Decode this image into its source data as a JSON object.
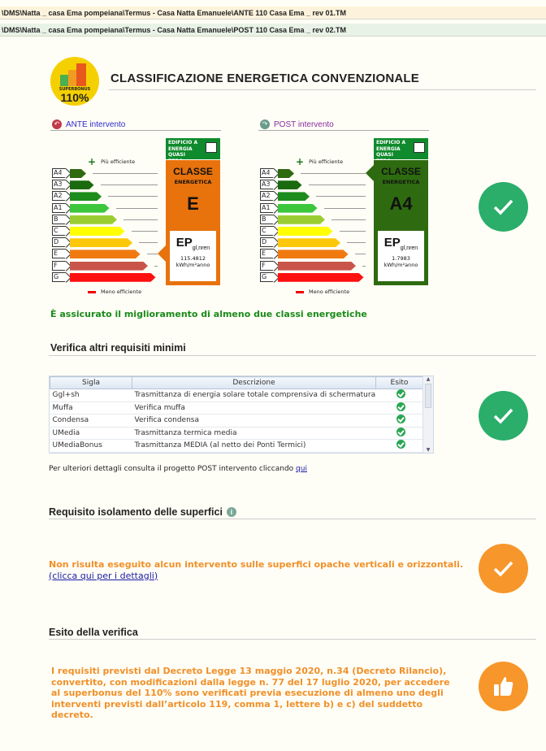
{
  "paths": {
    "ante": "\\DMS\\Natta _ casa Ema pompeiana\\Termus - Casa Natta Emanuele\\ANTE 110 Casa Ema _ rev 01.TM",
    "post": "\\DMS\\Natta _ casa Ema pompeiana\\Termus - Casa Natta Emanuele\\POST 110 Casa Ema _ rev 02.TM"
  },
  "logo": {
    "text": "SUPERBONUS 110%",
    "brand_color": "#f5d000"
  },
  "title": "CLASSIFICAZIONE ENERGETICA CONVENZIONALE",
  "classes": [
    "A4",
    "A3",
    "A2",
    "A1",
    "B",
    "C",
    "D",
    "E",
    "F",
    "G"
  ],
  "class_colors": [
    "#2e6b10",
    "#1a6a10",
    "#1c8c1c",
    "#3cc63c",
    "#9acd32",
    "#ffff00",
    "#fdc80a",
    "#f07a10",
    "#c8544a",
    "#ff1010"
  ],
  "legend": {
    "more": "Più efficiente",
    "less": "Meno efficiente"
  },
  "nzeb_label": "EDIFICIO A ENERGIA QUASI ZERO",
  "class_label": "CLASSE",
  "class_sublabel": "ENERGETICA",
  "ep_label": "EP",
  "ep_sub": "gl,nren",
  "unit": "kWh/m²anno",
  "ante": {
    "header": "ANTE intervento",
    "class": "E",
    "class_index": 7,
    "ep": "115.4812",
    "color": "#e8720c"
  },
  "post": {
    "header": "POST intervento",
    "class": "A4",
    "class_index": 0,
    "ep": "1.7983",
    "color": "#2e6b10"
  },
  "improvement": "È assicurato il miglioramento di almeno due classi energetiche",
  "requisiti": {
    "title": "Verifica altri requisiti minimi",
    "columns": [
      "Sigla",
      "Descrizione",
      "Esito"
    ],
    "rows": [
      {
        "sigla": "Ggl+sh",
        "descr": "Trasmittanza di energia solare totale comprensiva di schermatura",
        "esito": "ok"
      },
      {
        "sigla": "Muffa",
        "descr": "Verifica muffa",
        "esito": "ok"
      },
      {
        "sigla": "Condensa",
        "descr": "Verifica condensa",
        "esito": "ok"
      },
      {
        "sigla": "UMedia",
        "descr": "Trasmittanza termica media",
        "esito": "ok"
      },
      {
        "sigla": "UMediaBonus",
        "descr": "Trasmittanza MEDIA (al netto dei Ponti Termici)",
        "esito": "ok"
      }
    ],
    "note": "Per ulteriori dettagli consulta il progetto POST intervento cliccando ",
    "note_link": "qui"
  },
  "isolamento": {
    "title": "Requisito isolamento delle superfici",
    "text": "Non risulta eseguito alcun intervento sulle superfici opache verticali e orizzontali. ",
    "link": "(clicca qui per i dettagli)"
  },
  "esito": {
    "title": "Esito della verifica",
    "text": "I requisiti previsti dal Decreto Legge 13 maggio 2020, n.34 (Decreto Rilancio), convertito, con modificazioni dalla legge n. 77 del 17 luglio 2020, per accedere al superbonus del 110% sono verificati previa esecuzione di almeno uno degli interventi previsti dall’articolo 119, comma 1, lettere b) e c) del suddetto decreto."
  },
  "colors": {
    "success": "#2aae6a",
    "warning": "#f7962a",
    "improvement_text": "#1a8a1a"
  }
}
